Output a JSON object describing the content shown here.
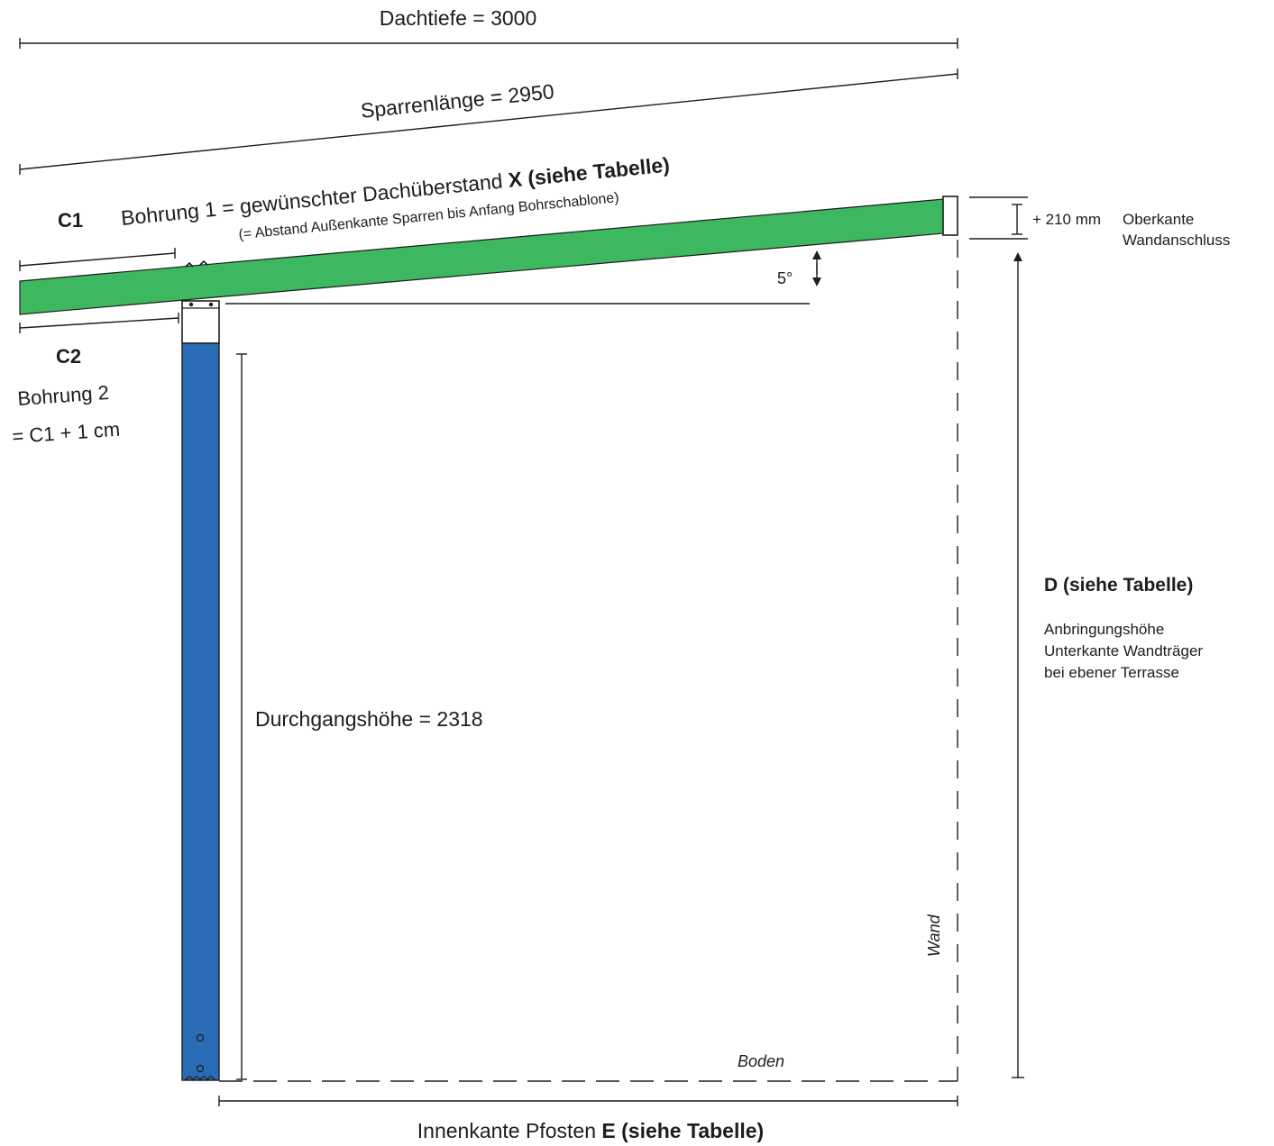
{
  "colors": {
    "rafter": "#3db860",
    "post": "#2a6bb5",
    "line": "#1d1d1b"
  },
  "labels": {
    "dachtiefe": "Dachtiefe = 3000",
    "sparrenlaenge": "Sparrenlänge = 2950",
    "c1": "C1",
    "bohrung1_text": "Bohrung 1 = gewünschter Dachüberstand ",
    "bohrung1_bold": "X (siehe Tabelle)",
    "bohrung1_sub": "(= Abstand Außenkante Sparren bis Anfang Bohrschablone)",
    "c2": "C2",
    "bohrung2": "Bohrung 2",
    "bohrung2_formula": "= C1 + 1 cm",
    "angle": "5°",
    "plus210": "+ 210 mm",
    "oberkante_line1": "Oberkante",
    "oberkante_line2": "Wandanschluss",
    "d_title": "D (siehe Tabelle)",
    "d_desc_line1": "Anbringungshöhe",
    "d_desc_line2": "Unterkante Wandträger",
    "d_desc_line3": "bei ebener Terrasse",
    "durchgangshoehe": "Durchgangshöhe = 2318",
    "wand": "Wand",
    "boden": "Boden",
    "innenkante_text": "Innenkante Pfosten ",
    "innenkante_bold": "E (siehe Tabelle)"
  }
}
